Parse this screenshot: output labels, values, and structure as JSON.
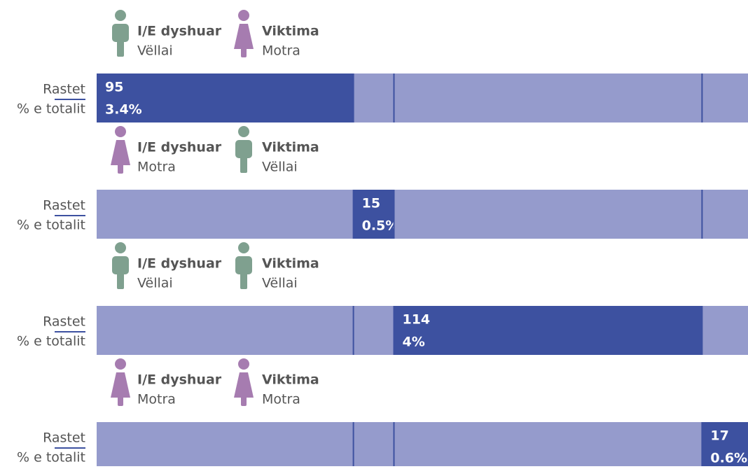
{
  "chart_data": {
    "type": "bar",
    "perpetrator_label": "I/E dyshuar",
    "victim_label": "Viktima",
    "perpetrators": [
      "Vëllai",
      "Motra",
      "Vëllai",
      "Motra"
    ],
    "victims": [
      "Motra",
      "Vëllai",
      "Vëllai",
      "Motra"
    ],
    "icons": {
      "Vëllai": {
        "color": "#7fa08f",
        "shape": "male"
      },
      "Motra": {
        "color": "#a67cb0",
        "shape": "female"
      }
    },
    "series": [
      {
        "name": "Rastet",
        "color": "#3d51a0",
        "values": [
          95,
          15,
          114,
          17
        ]
      },
      {
        "name": "% e totalit",
        "values": [
          3.4,
          0.5,
          4,
          0.6
        ],
        "value_labels": [
          "3.4%",
          "0.5%",
          "4%",
          "0.6%"
        ]
      }
    ],
    "background_color": "#959bcc"
  }
}
